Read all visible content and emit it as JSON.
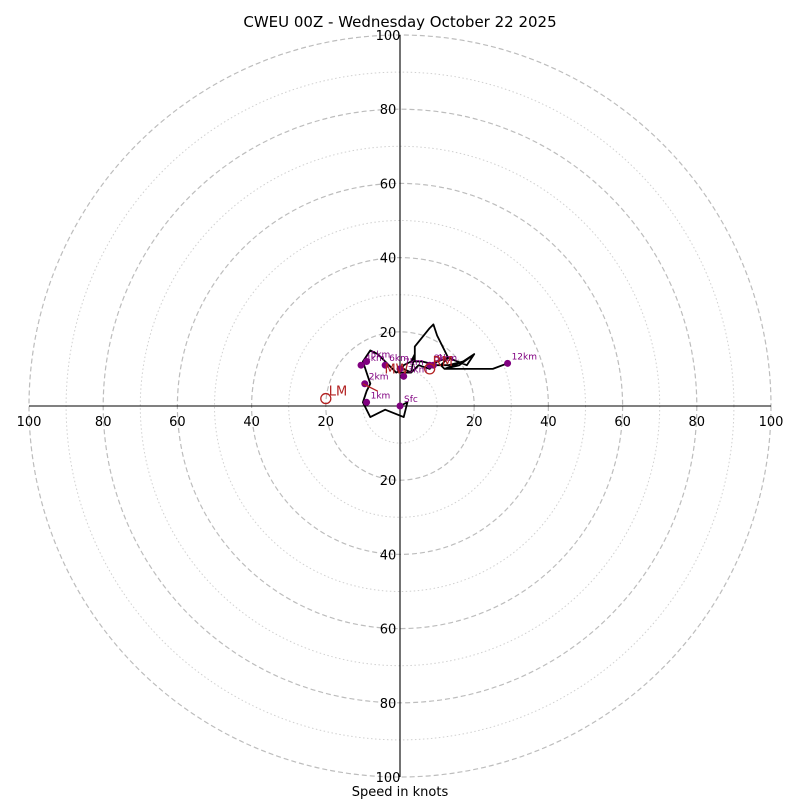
{
  "chart_data": {
    "type": "hodograph",
    "title": "CWEU 00Z - Wednesday October 22 2025",
    "xlabel": "Speed in knots",
    "rings_major": [
      20,
      40,
      60,
      80,
      100
    ],
    "rings_minor": [
      10,
      30,
      50,
      70,
      90
    ],
    "tick_labels": {
      "top": [
        "20",
        "40",
        "60",
        "80",
        "100"
      ],
      "bottom": [
        "20",
        "40",
        "60",
        "80",
        "100"
      ],
      "left": [
        "100",
        "80",
        "60",
        "40",
        "20"
      ],
      "right": [
        "20",
        "40",
        "60",
        "80",
        "100"
      ]
    },
    "axis_range": [
      -100,
      100
    ],
    "hodograph_trace": [
      [
        0,
        0
      ],
      [
        2,
        1
      ],
      [
        1,
        -3
      ],
      [
        -4,
        -1
      ],
      [
        -8,
        -3
      ],
      [
        -10,
        1
      ],
      [
        -9,
        4
      ],
      [
        -8,
        6
      ],
      [
        -10,
        12
      ],
      [
        -8,
        15
      ],
      [
        -6,
        14
      ],
      [
        -4,
        12
      ],
      [
        -2,
        10
      ],
      [
        -1,
        9
      ],
      [
        1,
        10
      ],
      [
        3,
        9
      ],
      [
        4,
        14
      ],
      [
        3,
        12
      ],
      [
        1,
        11
      ],
      [
        0,
        9
      ],
      [
        3,
        9
      ],
      [
        5,
        11
      ],
      [
        8,
        10
      ],
      [
        10,
        12
      ],
      [
        13,
        13
      ],
      [
        18,
        11
      ],
      [
        20,
        14
      ],
      [
        17,
        12
      ],
      [
        12,
        10
      ],
      [
        11,
        11
      ],
      [
        13,
        13
      ],
      [
        12,
        15
      ],
      [
        10,
        19
      ],
      [
        9,
        22
      ],
      [
        8,
        21
      ],
      [
        4,
        16
      ],
      [
        4,
        12
      ],
      [
        6,
        12
      ],
      [
        10,
        11
      ],
      [
        13,
        11
      ],
      [
        17,
        12
      ],
      [
        20,
        14
      ],
      [
        16,
        11
      ],
      [
        12,
        10
      ],
      [
        16,
        10
      ],
      [
        17,
        10
      ],
      [
        25,
        10
      ],
      [
        29,
        11.5
      ]
    ],
    "height_markers": [
      {
        "label": "Sfc",
        "u": 0,
        "v": 0
      },
      {
        "label": "1km",
        "u": -9,
        "v": 1
      },
      {
        "label": "2km",
        "u": -9.5,
        "v": 6
      },
      {
        "label": "3km",
        "u": 1,
        "v": 8
      },
      {
        "label": "4km",
        "u": -10.5,
        "v": 11
      },
      {
        "label": "5km",
        "u": -9,
        "v": 12
      },
      {
        "label": "6km",
        "u": -4,
        "v": 11
      },
      {
        "label": "7km",
        "u": 0,
        "v": 10
      },
      {
        "label": "8km",
        "u": 8,
        "v": 11
      },
      {
        "label": "9km",
        "u": 9,
        "v": 11
      },
      {
        "label": "12km",
        "u": 29,
        "v": 11.5
      }
    ],
    "storm_motions": [
      {
        "label": "RM",
        "u": 8,
        "v": 10
      },
      {
        "label": "LM",
        "u": -20,
        "v": 2
      },
      {
        "label": "MW",
        "u": -5,
        "v": 8
      }
    ],
    "shear_vector": {
      "from": [
        -10,
        6
      ],
      "to": [
        -6,
        4
      ]
    }
  }
}
